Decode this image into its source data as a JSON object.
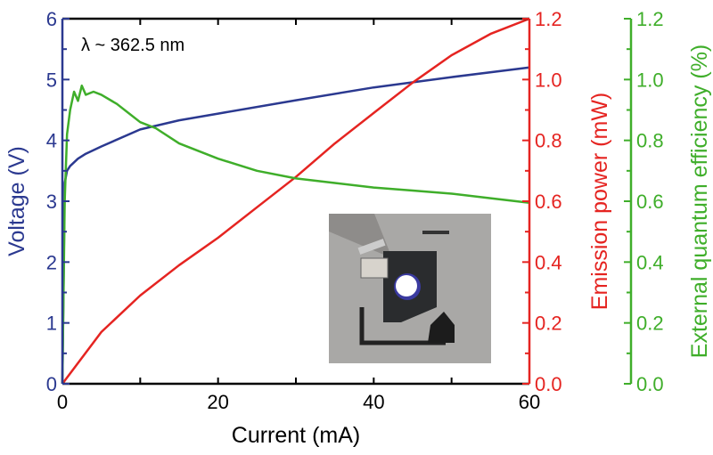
{
  "chart_data": {
    "type": "line",
    "annotation": "λ ~ 362.5 nm",
    "xlabel": "Current (mA)",
    "xlim": [
      0,
      60
    ],
    "xticks": [
      "0",
      "20",
      "40",
      "60"
    ],
    "axes": {
      "left": {
        "label": "Voltage (V)",
        "ylim": [
          0,
          6
        ],
        "ticks": [
          "0",
          "1",
          "2",
          "3",
          "4",
          "5",
          "6"
        ],
        "color": "#2b3990"
      },
      "right1": {
        "label": "Emission power (mW)",
        "ylim": [
          0,
          1.2
        ],
        "ticks": [
          "0.0",
          "0.2",
          "0.4",
          "0.6",
          "0.8",
          "1.0",
          "1.2"
        ],
        "color": "#e52421"
      },
      "right2": {
        "label": "External quantum efficiency (%)",
        "ylim": [
          0,
          1.2
        ],
        "ticks": [
          "0.0",
          "0.2",
          "0.4",
          "0.6",
          "0.8",
          "1.0",
          "1.2"
        ],
        "color": "#3fae2a"
      }
    },
    "series": [
      {
        "name": "Voltage",
        "axis": "left",
        "color": "#2b3990",
        "x": [
          0,
          0.3,
          0.6,
          1,
          2,
          3,
          5,
          10,
          15,
          20,
          30,
          40,
          50,
          60
        ],
        "y": [
          0,
          3.3,
          3.5,
          3.58,
          3.7,
          3.78,
          3.9,
          4.18,
          4.33,
          4.44,
          4.66,
          4.87,
          5.04,
          5.2
        ]
      },
      {
        "name": "Emission power",
        "axis": "right1",
        "color": "#e52421",
        "x": [
          0,
          5,
          10,
          15,
          20,
          25,
          30,
          35,
          40,
          45,
          50,
          55,
          60
        ],
        "y": [
          0,
          0.17,
          0.29,
          0.39,
          0.48,
          0.58,
          0.68,
          0.79,
          0.89,
          0.99,
          1.08,
          1.15,
          1.2
        ]
      },
      {
        "name": "External quantum efficiency",
        "axis": "right2",
        "color": "#3fae2a",
        "x": [
          0,
          0.3,
          0.6,
          1,
          1.5,
          2,
          2.5,
          3,
          4,
          5,
          7,
          10,
          12,
          15,
          20,
          25,
          30,
          35,
          40,
          45,
          50,
          55,
          60
        ],
        "y": [
          0,
          0.6,
          0.82,
          0.9,
          0.96,
          0.93,
          0.98,
          0.95,
          0.96,
          0.95,
          0.92,
          0.86,
          0.84,
          0.79,
          0.74,
          0.7,
          0.675,
          0.66,
          0.645,
          0.635,
          0.625,
          0.61,
          0.595
        ]
      }
    ]
  }
}
